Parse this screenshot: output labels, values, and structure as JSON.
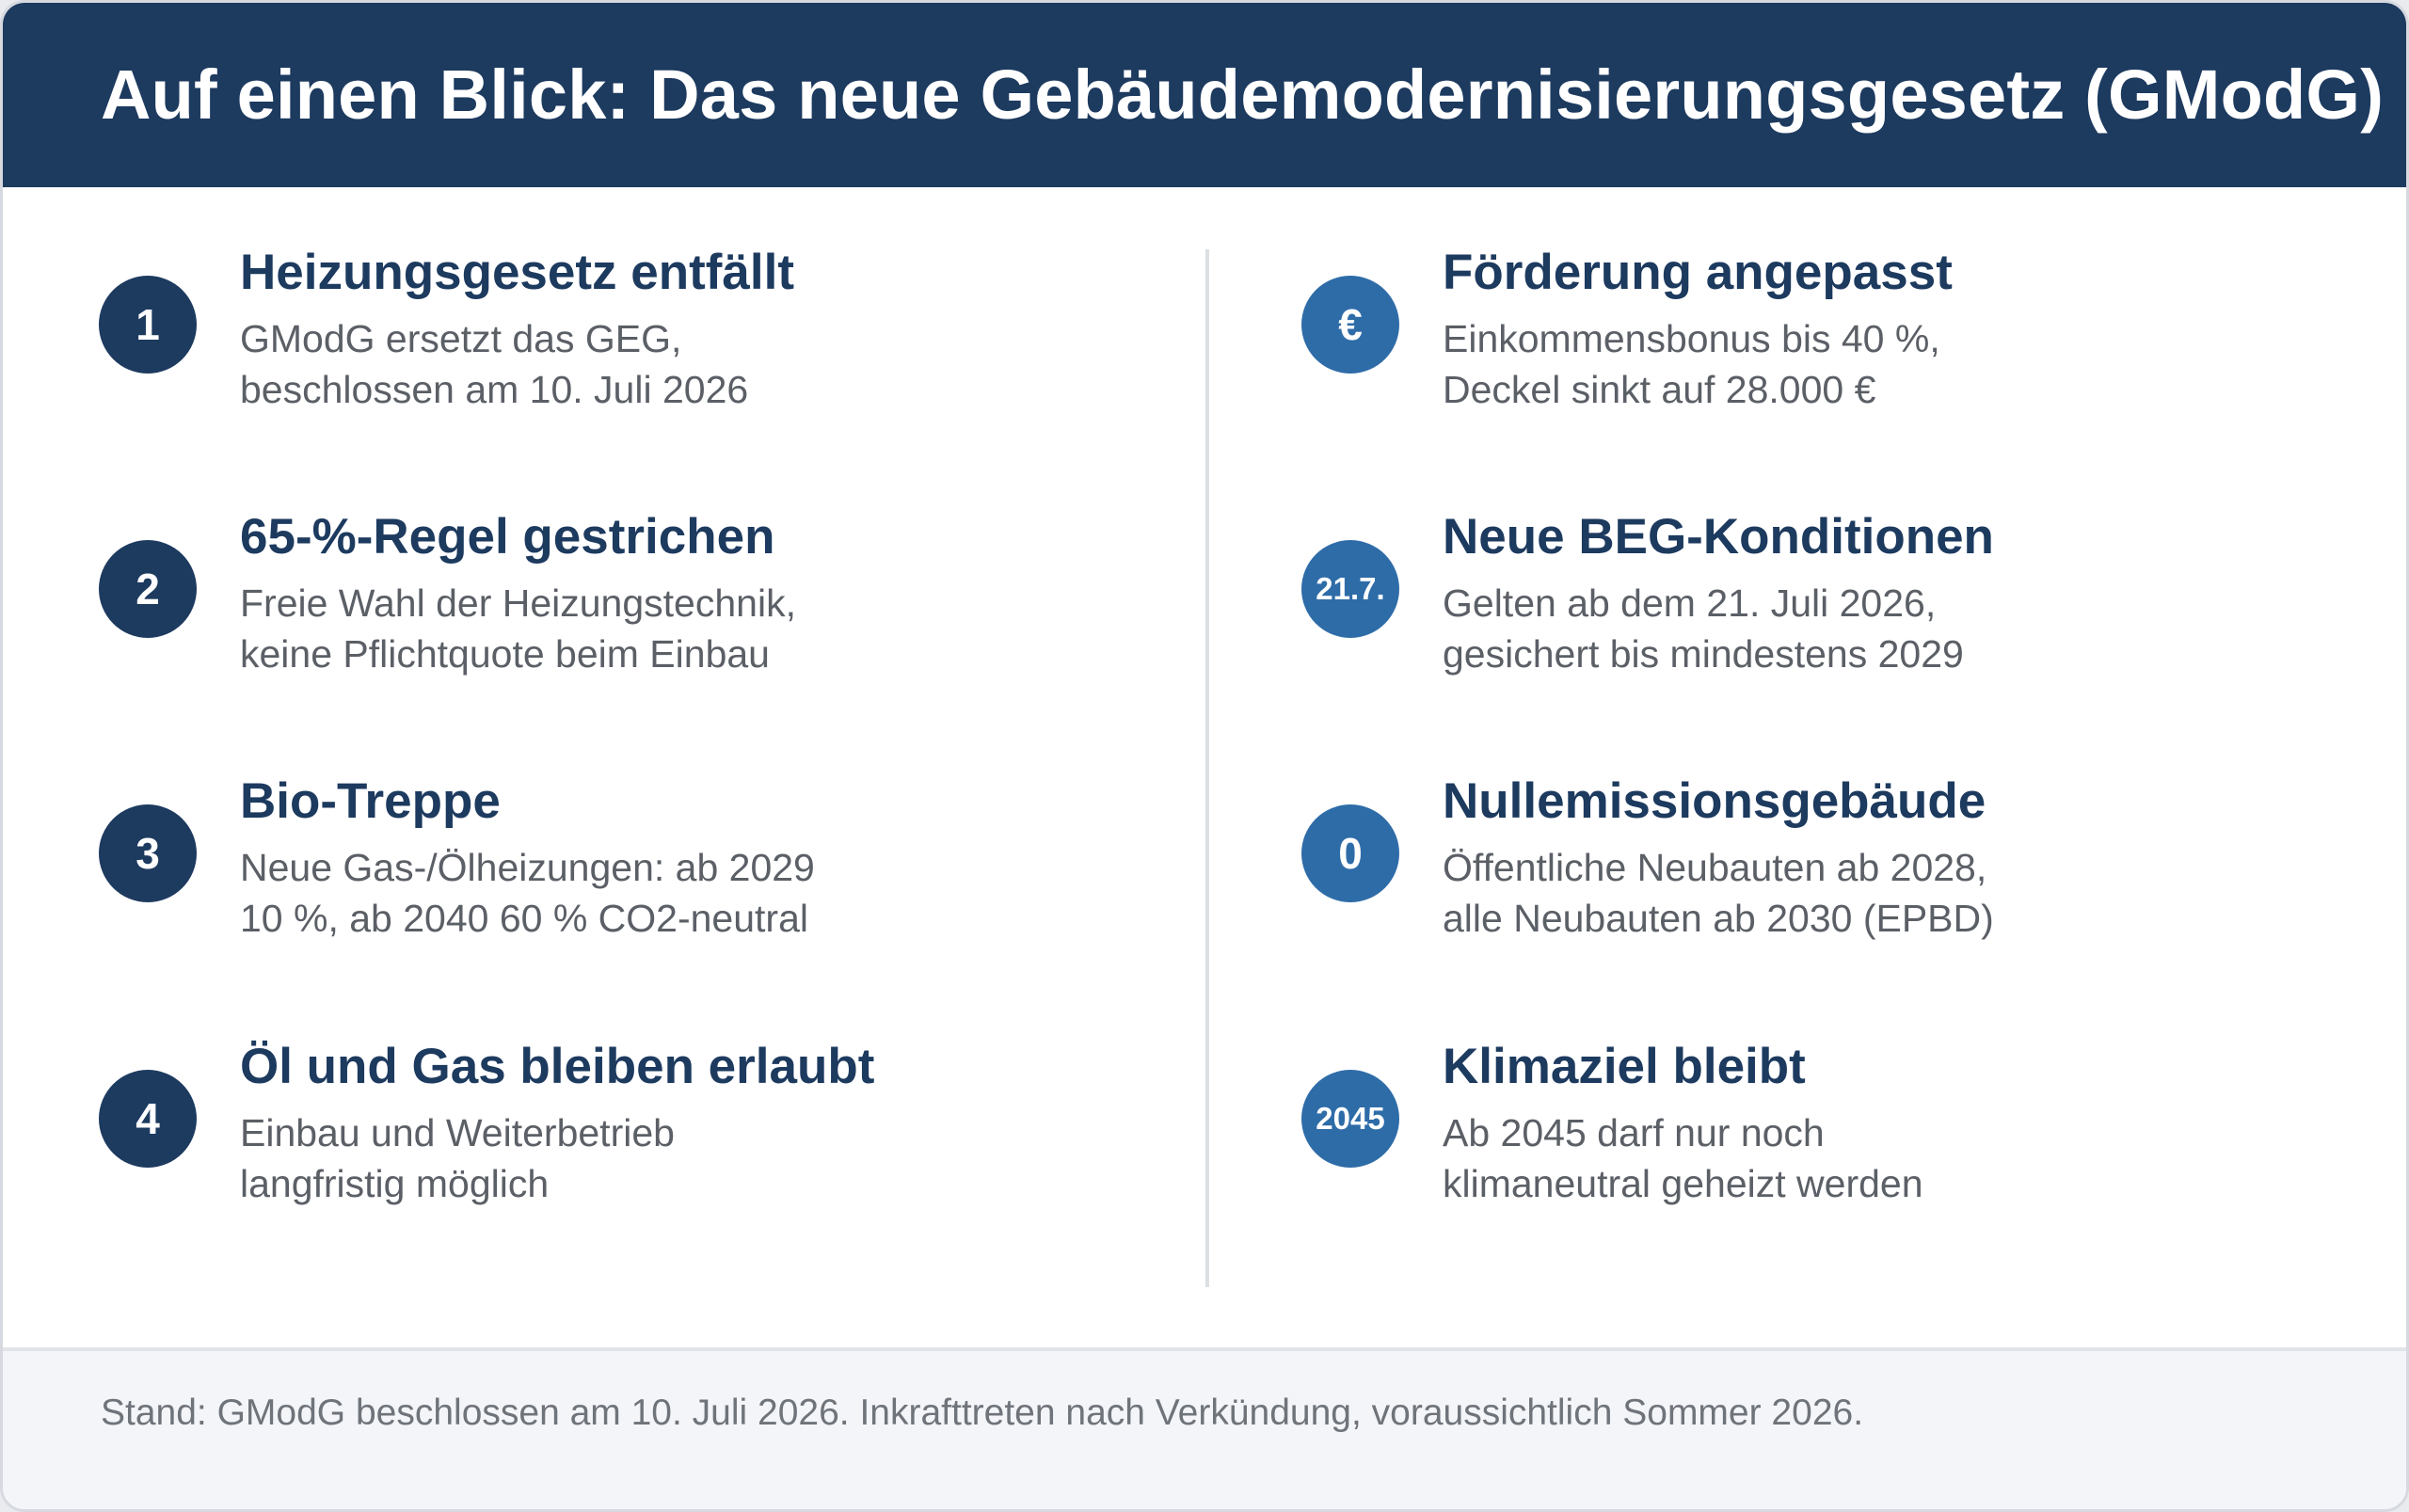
{
  "header": {
    "title": "Auf einen Blick: Das neue Gebäudemodernisierungsgesetz (GModG)"
  },
  "left_items": [
    {
      "badge": "1",
      "title": "Heizungsgesetz entfällt",
      "line1": "GModG ersetzt das GEG,",
      "line2": "beschlossen am 10. Juli 2026"
    },
    {
      "badge": "2",
      "title": "65-%-Regel gestrichen",
      "line1": "Freie Wahl der Heizungstechnik,",
      "line2": "keine Pflichtquote beim Einbau"
    },
    {
      "badge": "3",
      "title": "Bio-Treppe",
      "line1": "Neue Gas-/Ölheizungen: ab 2029",
      "line2": "10 %, ab 2040 60 % CO2-neutral"
    },
    {
      "badge": "4",
      "title": "Öl und Gas bleiben erlaubt",
      "line1": "Einbau und Weiterbetrieb",
      "line2": "langfristig möglich"
    }
  ],
  "right_items": [
    {
      "badge": "€",
      "title": "Förderung angepasst",
      "line1": "Einkommensbonus bis 40 %,",
      "line2": "Deckel sinkt auf 28.000 €"
    },
    {
      "badge": "21.7.",
      "title": "Neue BEG-Konditionen",
      "line1": "Gelten ab dem 21. Juli 2026,",
      "line2": "gesichert bis mindestens 2029"
    },
    {
      "badge": "0",
      "title": "Nullemissionsgebäude",
      "line1": "Öffentliche Neubauten ab 2028,",
      "line2": "alle Neubauten ab 2030 (EPBD)"
    },
    {
      "badge": "2045",
      "title": "Klimaziel bleibt",
      "line1": "Ab 2045 darf nur noch",
      "line2": "klimaneutral geheizt werden"
    }
  ],
  "footer": {
    "note": "Stand: GModG beschlossen am 10. Juli 2026. Inkrafttreten nach Verkündung, voraussichtlich Sommer 2026."
  },
  "colors": {
    "header_bg": "#1d3a5f",
    "badge_dark": "#1d3a5f",
    "badge_blue": "#2e6ca8",
    "title_text": "#1d3a5f",
    "body_text": "#5b5f66"
  }
}
